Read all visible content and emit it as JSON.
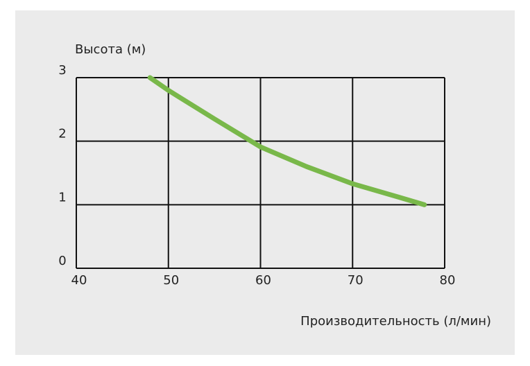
{
  "chart_data": {
    "type": "line",
    "y_label": "Высота (м)",
    "x_label": "Производительность (л/мин)",
    "x": [
      48,
      50,
      55,
      60,
      65,
      70,
      75,
      77.8
    ],
    "series": [
      {
        "color": "#79b84a",
        "values": [
          3.0,
          2.8,
          2.35,
          1.91,
          1.6,
          1.33,
          1.12,
          1.0
        ]
      }
    ],
    "xlim": [
      40,
      80
    ],
    "xticks": [
      40,
      50,
      60,
      70,
      80
    ],
    "ylim": [
      0,
      3
    ],
    "yticks": [
      0,
      1,
      2,
      3
    ],
    "grid": true
  }
}
